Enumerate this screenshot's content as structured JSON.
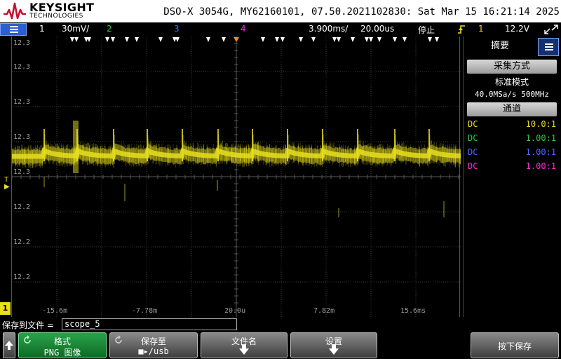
{
  "header": {
    "brand_name": "KEYSIGHT",
    "brand_sub": "TECHNOLOGIES",
    "device_info": "DSO-X 3054G, MY62160101, 07.50.2021102830: Sat Mar 15 16:21:14 2025",
    "brand_color": "#c8102e"
  },
  "status_bar": {
    "ch1_num": "1",
    "ch1_scale": "30mV/",
    "ch2_num": "2",
    "ch3_num": "3",
    "ch4_num": "4",
    "time_delay": "3.900ms/",
    "time_scale": "20.00us",
    "run_state": "停止",
    "trigger_icon": "trigger-edge-icon",
    "trigger_source": "1",
    "trigger_level": "12.2V",
    "colors": {
      "ch1": "#e8df1f",
      "ch2": "#2ecc40",
      "ch3": "#4a6cff",
      "ch4": "#ff2bd6"
    }
  },
  "plot": {
    "y_labels": [
      "12.3",
      "12.3",
      "12.3",
      "12.3",
      "12.3",
      "12.2",
      "12.2",
      "12.2"
    ],
    "x_labels": [
      "-15.6m",
      "-7.78m",
      "20.0u",
      "7.82m",
      "15.6ms"
    ],
    "ground_marker": "1",
    "trigger_marker": "T",
    "trace_color": "#e8df1f"
  },
  "side_panel": {
    "title": "摘要",
    "acq_heading": "采集方式",
    "acq_mode": "标准模式",
    "acq_rate": "40.0MSa/s  500MHz",
    "channel_heading": "通道",
    "channels": [
      {
        "coupling": "DC",
        "probe": "10.0:1",
        "color": "#e8df1f"
      },
      {
        "coupling": "DC",
        "probe": "1.00:1",
        "color": "#2ecc40"
      },
      {
        "coupling": "DC",
        "probe": "1.00:1",
        "color": "#4a6cff"
      },
      {
        "coupling": "DC",
        "probe": "1.00:1",
        "color": "#ff2bd6"
      }
    ]
  },
  "save": {
    "label": "保存到文件 =",
    "filename": "scope_5"
  },
  "softkeys": {
    "format_label": "格式",
    "format_value": "PNG 图像",
    "saveto_label": "保存至",
    "saveto_value": "/usb",
    "filename_label": "文件名",
    "settings_label": "设置",
    "press_save_label": "按下保存"
  }
}
